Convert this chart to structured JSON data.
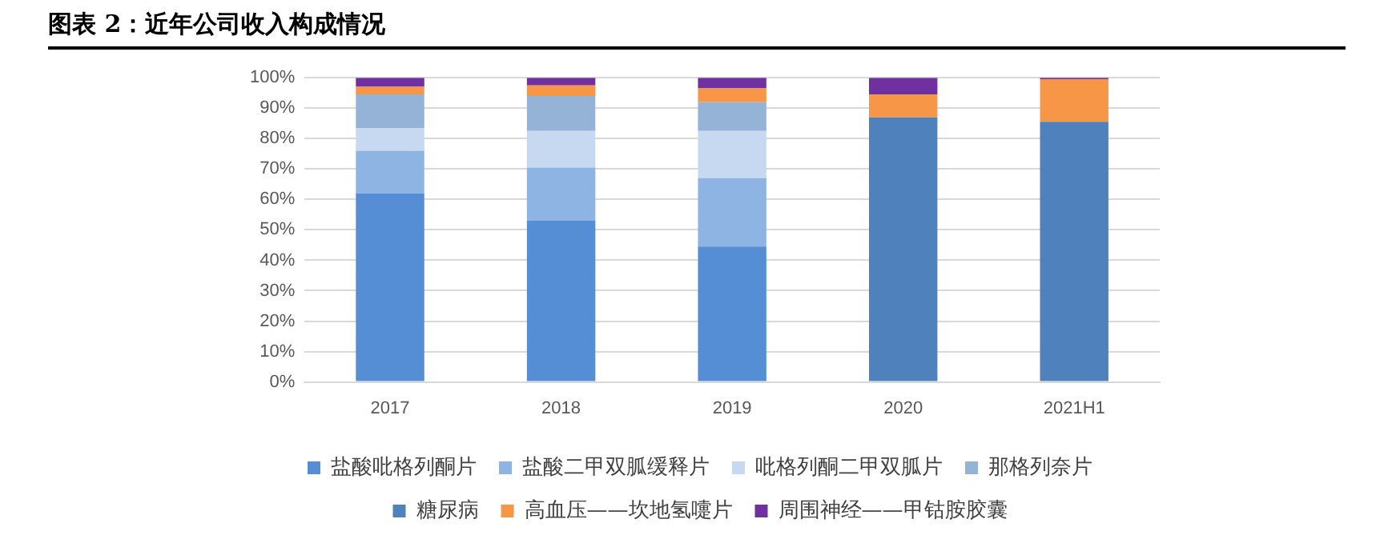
{
  "chart_data": {
    "type": "bar",
    "title": "图表 2：近年公司收入构成情况",
    "stacked": true,
    "categories": [
      "2017",
      "2018",
      "2019",
      "2020",
      "2021H1"
    ],
    "series": [
      {
        "name": "盐酸吡格列酮片",
        "color": "#558ed5",
        "values": [
          62,
          53,
          44.5,
          null,
          null
        ]
      },
      {
        "name": "盐酸二甲双胍缓释片",
        "color": "#8eb4e3",
        "values": [
          14,
          17.5,
          22.5,
          null,
          null
        ]
      },
      {
        "name": "吡格列酮二甲双胍片",
        "color": "#c6d9f1",
        "values": [
          7.5,
          12,
          15.5,
          null,
          null
        ]
      },
      {
        "name": "那格列奈片",
        "color": "#95b3d7",
        "values": [
          11,
          11.5,
          9.5,
          null,
          null
        ]
      },
      {
        "name": "糖尿病",
        "color": "#4f81bd",
        "values": [
          null,
          null,
          null,
          87,
          85.5
        ]
      },
      {
        "name": "高血压——坎地氢嚏片",
        "color": "#f79646",
        "values": [
          2.5,
          3.5,
          4.5,
          7.5,
          14
        ]
      },
      {
        "name": "周围神经——甲钴胺胶囊",
        "color": "#7030a0",
        "values": [
          3,
          2.5,
          3.5,
          5.5,
          0.5
        ]
      }
    ],
    "ylim": [
      0,
      100
    ],
    "yticks": [
      {
        "value": 0,
        "label": "0%"
      },
      {
        "value": 10,
        "label": "10%"
      },
      {
        "value": 20,
        "label": "20%"
      },
      {
        "value": 30,
        "label": "30%"
      },
      {
        "value": 40,
        "label": "40%"
      },
      {
        "value": 50,
        "label": "50%"
      },
      {
        "value": 60,
        "label": "60%"
      },
      {
        "value": 70,
        "label": "70%"
      },
      {
        "value": 80,
        "label": "80%"
      },
      {
        "value": 90,
        "label": "90%"
      },
      {
        "value": 100,
        "label": "100%"
      }
    ],
    "grid": "y",
    "legend": "bottom"
  }
}
